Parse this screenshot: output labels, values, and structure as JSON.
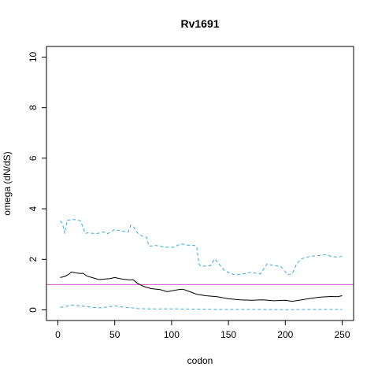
{
  "chart_data": {
    "type": "line",
    "title": "Rv1691",
    "xlabel": "codon",
    "ylabel": "omega (dN/dS)",
    "xlim": [
      0,
      250
    ],
    "ylim": [
      0,
      10
    ],
    "x_ticks": [
      0,
      50,
      100,
      150,
      200,
      250
    ],
    "y_ticks": [
      0,
      2,
      4,
      6,
      8,
      10
    ],
    "grid": false,
    "reference_line": {
      "y": 1,
      "color": "#C05FC0"
    },
    "series": [
      {
        "role": "estimate",
        "color": "#000000",
        "dash": "solid",
        "x": [
          2,
          6,
          10,
          12,
          16,
          20,
          22,
          26,
          30,
          36,
          42,
          46,
          50,
          56,
          60,
          64,
          66,
          70,
          76,
          82,
          90,
          96,
          100,
          106,
          110,
          116,
          122,
          130,
          140,
          150,
          160,
          170,
          180,
          190,
          200,
          206,
          212,
          220,
          230,
          240,
          246,
          250
        ],
        "y": [
          1.28,
          1.32,
          1.42,
          1.5,
          1.46,
          1.44,
          1.45,
          1.33,
          1.28,
          1.2,
          1.22,
          1.24,
          1.28,
          1.22,
          1.2,
          1.18,
          1.2,
          1.05,
          0.92,
          0.84,
          0.8,
          0.72,
          0.75,
          0.8,
          0.82,
          0.72,
          0.62,
          0.56,
          0.52,
          0.44,
          0.4,
          0.38,
          0.4,
          0.36,
          0.38,
          0.34,
          0.38,
          0.44,
          0.5,
          0.53,
          0.52,
          0.56
        ]
      },
      {
        "role": "upper",
        "color": "#3CA8E0",
        "dash": "dashed",
        "x": [
          2,
          4,
          6,
          8,
          10,
          14,
          20,
          24,
          26,
          34,
          40,
          44,
          50,
          56,
          62,
          64,
          66,
          70,
          74,
          78,
          80,
          86,
          94,
          102,
          108,
          112,
          116,
          120,
          122,
          124,
          126,
          134,
          138,
          146,
          150,
          156,
          162,
          170,
          178,
          184,
          190,
          196,
          202,
          206,
          210,
          214,
          222,
          230,
          236,
          240,
          246,
          250
        ],
        "y": [
          3.52,
          3.42,
          3.02,
          3.55,
          3.55,
          3.58,
          3.52,
          3.02,
          3.05,
          3.02,
          3.08,
          3.02,
          3.18,
          3.12,
          3.08,
          3.35,
          3.32,
          3.05,
          2.92,
          2.88,
          2.52,
          2.55,
          2.48,
          2.48,
          2.62,
          2.58,
          2.55,
          2.55,
          2.52,
          1.82,
          1.72,
          1.75,
          2.02,
          1.58,
          1.48,
          1.38,
          1.42,
          1.48,
          1.42,
          1.82,
          1.75,
          1.72,
          1.4,
          1.42,
          1.82,
          2.02,
          2.12,
          2.15,
          2.18,
          2.12,
          2.08,
          2.12
        ]
      },
      {
        "role": "lower",
        "color": "#3CA8E0",
        "dash": "dashed",
        "x": [
          2,
          8,
          12,
          18,
          24,
          30,
          38,
          46,
          50,
          58,
          64,
          70,
          80,
          100,
          120,
          140,
          160,
          180,
          200,
          220,
          240,
          250
        ],
        "y": [
          0.1,
          0.15,
          0.2,
          0.16,
          0.14,
          0.1,
          0.08,
          0.13,
          0.16,
          0.1,
          0.09,
          0.05,
          0.04,
          0.04,
          0.03,
          0.02,
          0.02,
          0.02,
          0.01,
          0.02,
          0.02,
          0.02
        ]
      }
    ]
  }
}
